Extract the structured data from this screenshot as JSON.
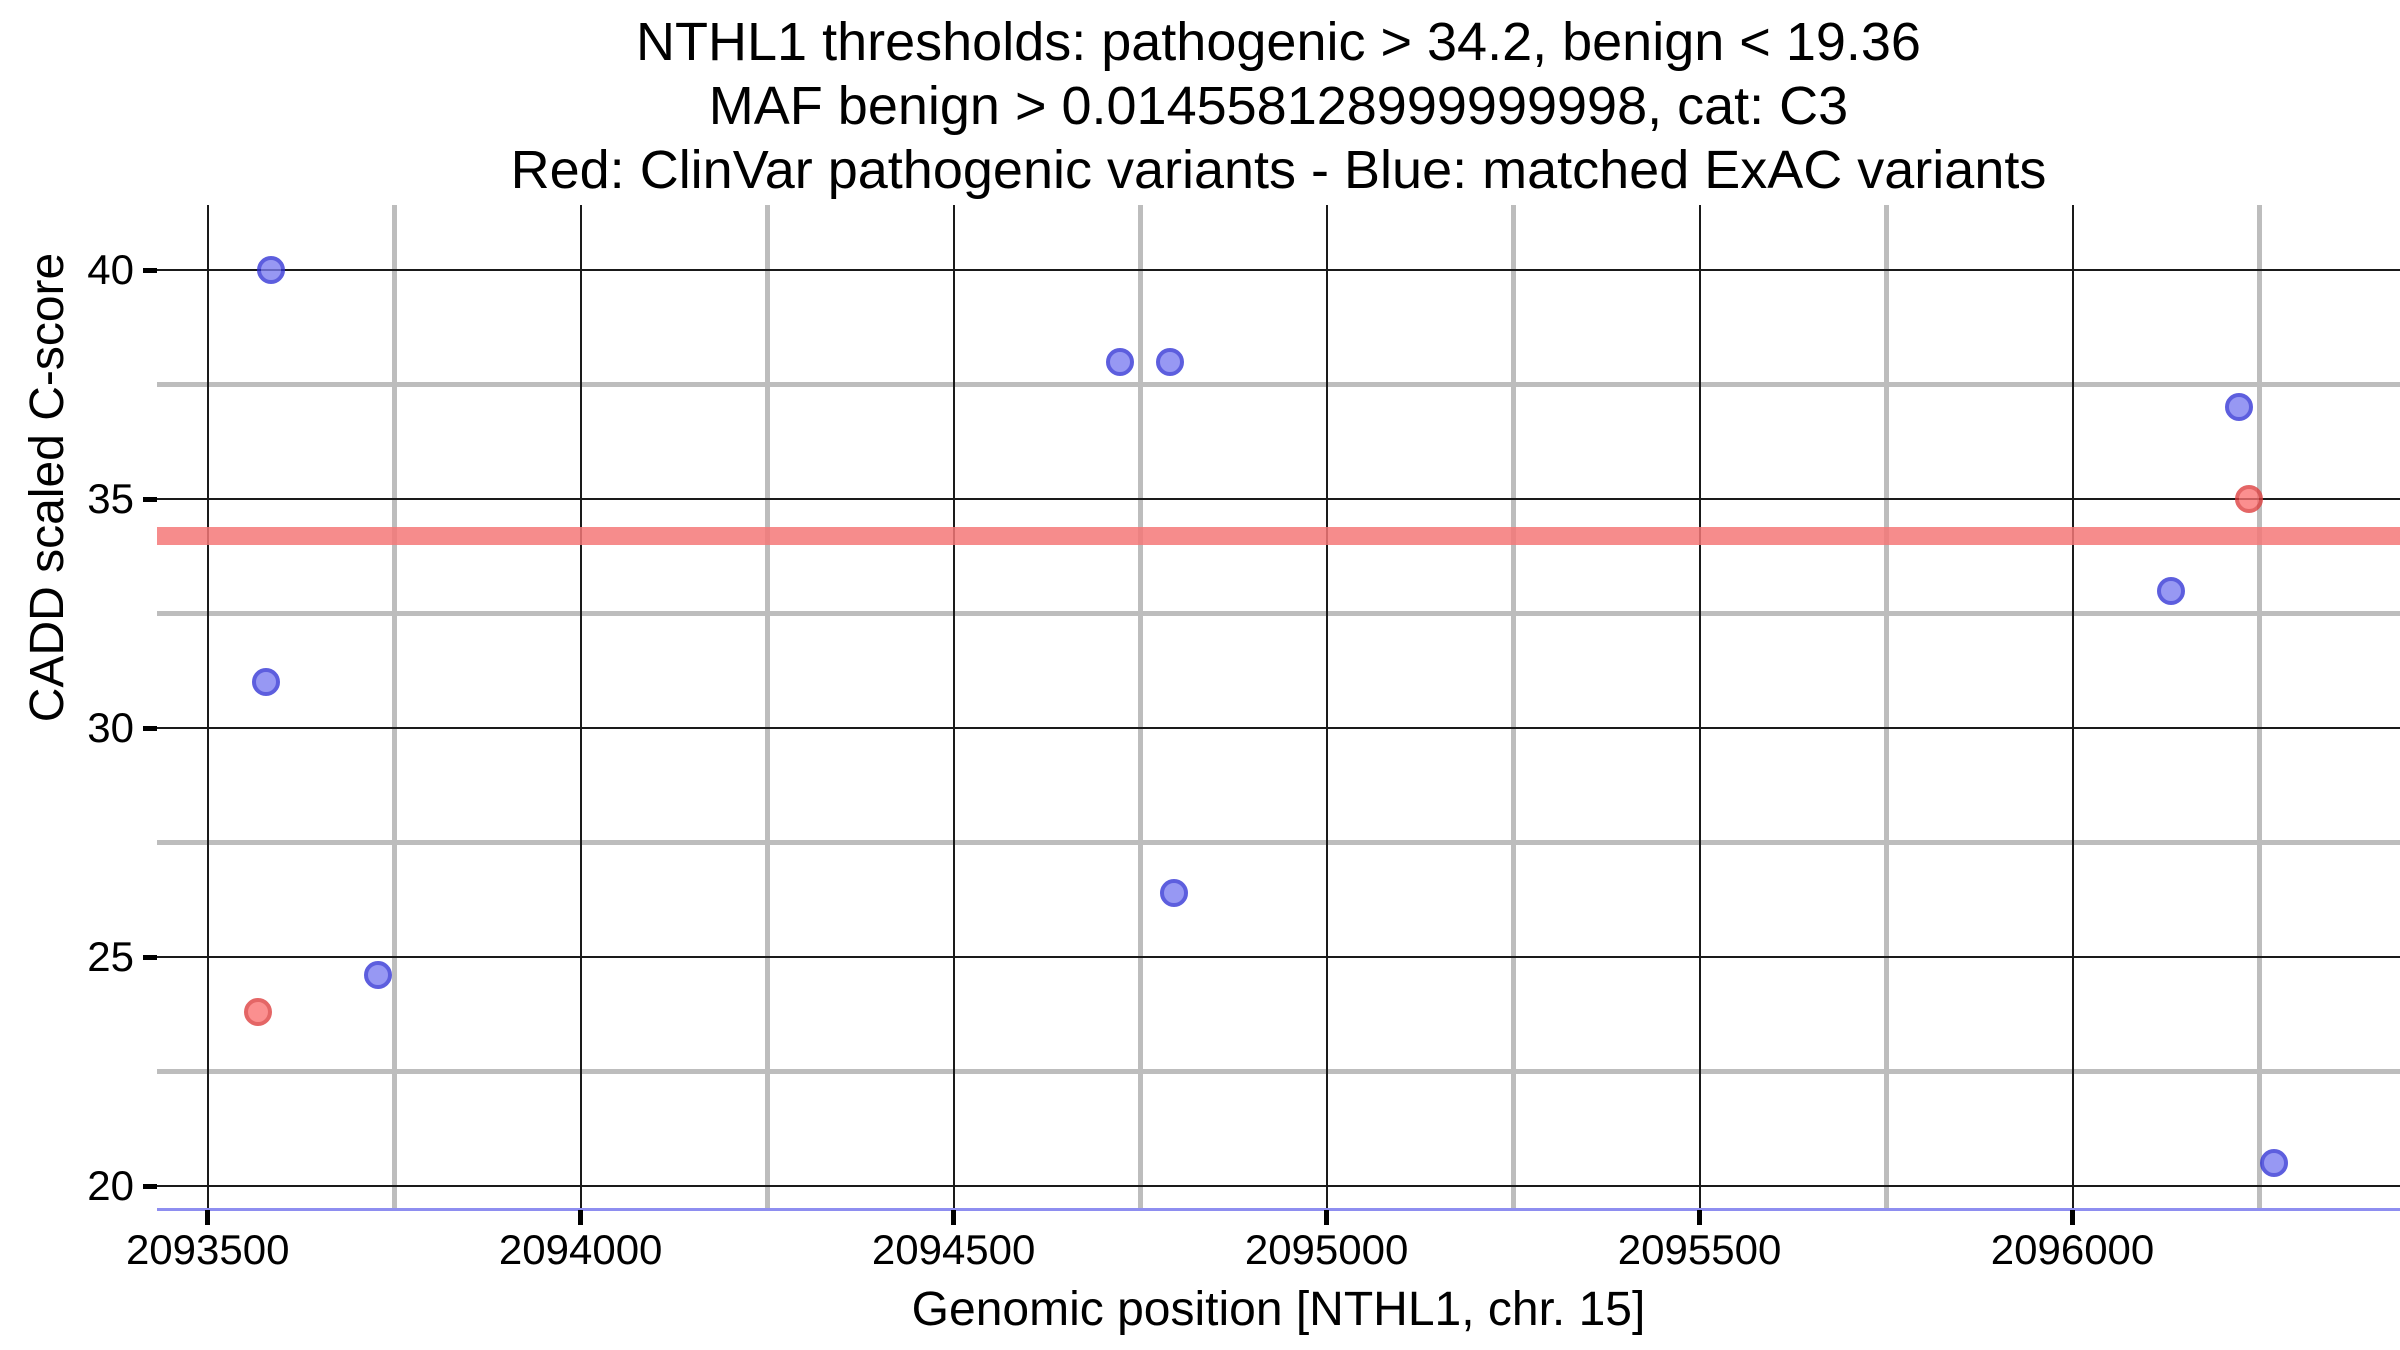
{
  "title": {
    "line1": "NTHL1 thresholds: pathogenic > 34.2, benign < 19.36",
    "line2": "MAF benign > 0.014558128999999998, cat: C3",
    "line3": "Red: ClinVar pathogenic variants - Blue: matched ExAC variants"
  },
  "chart_data": {
    "type": "scatter",
    "title": "NTHL1 thresholds: pathogenic > 34.2, benign < 19.36 | MAF benign > 0.014558128999999998, cat: C3 | Red: ClinVar pathogenic variants - Blue: matched ExAC variants",
    "xlabel": "Genomic position [NTHL1, chr. 15]",
    "ylabel": "CADD scaled C-score",
    "xlim": [
      2093432,
      2096439
    ],
    "ylim": [
      19.48,
      41.42
    ],
    "grid": "major: thin black, minor: thick gray, no panel border",
    "legend_position": "none (encoded in title line 3)",
    "x_major_ticks": [
      2093500,
      2094000,
      2094500,
      2095000,
      2095500,
      2096000
    ],
    "x_major_tick_labels": [
      "2093500",
      "2094000",
      "2094500",
      "2095000",
      "2095500",
      "2096000"
    ],
    "x_minor_ticks": [
      2093750,
      2094250,
      2094750,
      2095250,
      2095750,
      2096250
    ],
    "y_major_ticks": [
      20,
      25,
      30,
      35,
      40
    ],
    "y_major_tick_labels": [
      "20",
      "25",
      "30",
      "35",
      "40"
    ],
    "y_minor_ticks": [
      22.5,
      27.5,
      32.5,
      37.5
    ],
    "series": [
      {
        "name": "matched ExAC variants",
        "marker": "circle",
        "edge_color": "#3032d6",
        "fill_color": "#7a7cf0",
        "points": [
          {
            "x": 2093585,
            "y": 40.0
          },
          {
            "x": 2093578,
            "y": 31.0
          },
          {
            "x": 2093728,
            "y": 24.6
          },
          {
            "x": 2094723,
            "y": 38.0
          },
          {
            "x": 2094790,
            "y": 38.0
          },
          {
            "x": 2094796,
            "y": 26.4
          },
          {
            "x": 2096223,
            "y": 37.0
          },
          {
            "x": 2096132,
            "y": 33.0
          },
          {
            "x": 2096270,
            "y": 20.5
          }
        ]
      },
      {
        "name": "ClinVar pathogenic variants",
        "marker": "circle",
        "edge_color": "#dd3c3c",
        "fill_color": "#fa7070",
        "points": [
          {
            "x": 2093567,
            "y": 23.8
          },
          {
            "x": 2096237,
            "y": 35.0
          }
        ]
      }
    ],
    "thresholds": [
      {
        "name": "pathogenic",
        "value": 34.2,
        "color": "#f47878",
        "style": "thick horizontal band"
      },
      {
        "name": "benign",
        "value": 19.36,
        "color": "#8e8ef0",
        "style": "thin horizontal line at panel bottom"
      }
    ]
  }
}
